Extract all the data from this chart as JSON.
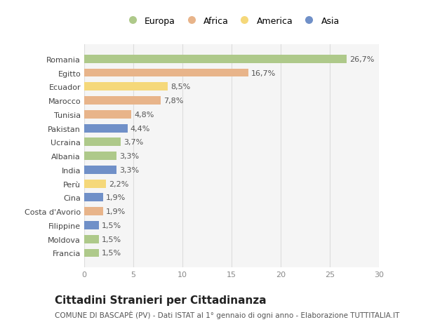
{
  "categories": [
    "Romania",
    "Egitto",
    "Ecuador",
    "Marocco",
    "Tunisia",
    "Pakistan",
    "Ucraina",
    "Albania",
    "India",
    "Perù",
    "Cina",
    "Costa d'Avorio",
    "Filippine",
    "Moldova",
    "Francia"
  ],
  "values": [
    26.7,
    16.7,
    8.5,
    7.8,
    4.8,
    4.4,
    3.7,
    3.3,
    3.3,
    2.2,
    1.9,
    1.9,
    1.5,
    1.5,
    1.5
  ],
  "labels": [
    "26,7%",
    "16,7%",
    "8,5%",
    "7,8%",
    "4,8%",
    "4,4%",
    "3,7%",
    "3,3%",
    "3,3%",
    "2,2%",
    "1,9%",
    "1,9%",
    "1,5%",
    "1,5%",
    "1,5%"
  ],
  "continents": [
    "Europa",
    "Africa",
    "America",
    "Africa",
    "Africa",
    "Asia",
    "Europa",
    "Europa",
    "Asia",
    "America",
    "Asia",
    "Africa",
    "Asia",
    "Europa",
    "Europa"
  ],
  "continent_colors": {
    "Europa": "#aec98a",
    "Africa": "#e8b48a",
    "America": "#f5d87a",
    "Asia": "#7090c8"
  },
  "legend_items": [
    "Europa",
    "Africa",
    "America",
    "Asia"
  ],
  "xlim": [
    0,
    30
  ],
  "xticks": [
    0,
    5,
    10,
    15,
    20,
    25,
    30
  ],
  "title": "Cittadini Stranieri per Cittadinanza",
  "subtitle": "COMUNE DI BASCAPÈ (PV) - Dati ISTAT al 1° gennaio di ogni anno - Elaborazione TUTTITALIA.IT",
  "bg_color": "#ffffff",
  "plot_bg_color": "#f5f5f5",
  "title_fontsize": 11,
  "subtitle_fontsize": 7.5,
  "label_fontsize": 8,
  "tick_fontsize": 8,
  "legend_fontsize": 9
}
